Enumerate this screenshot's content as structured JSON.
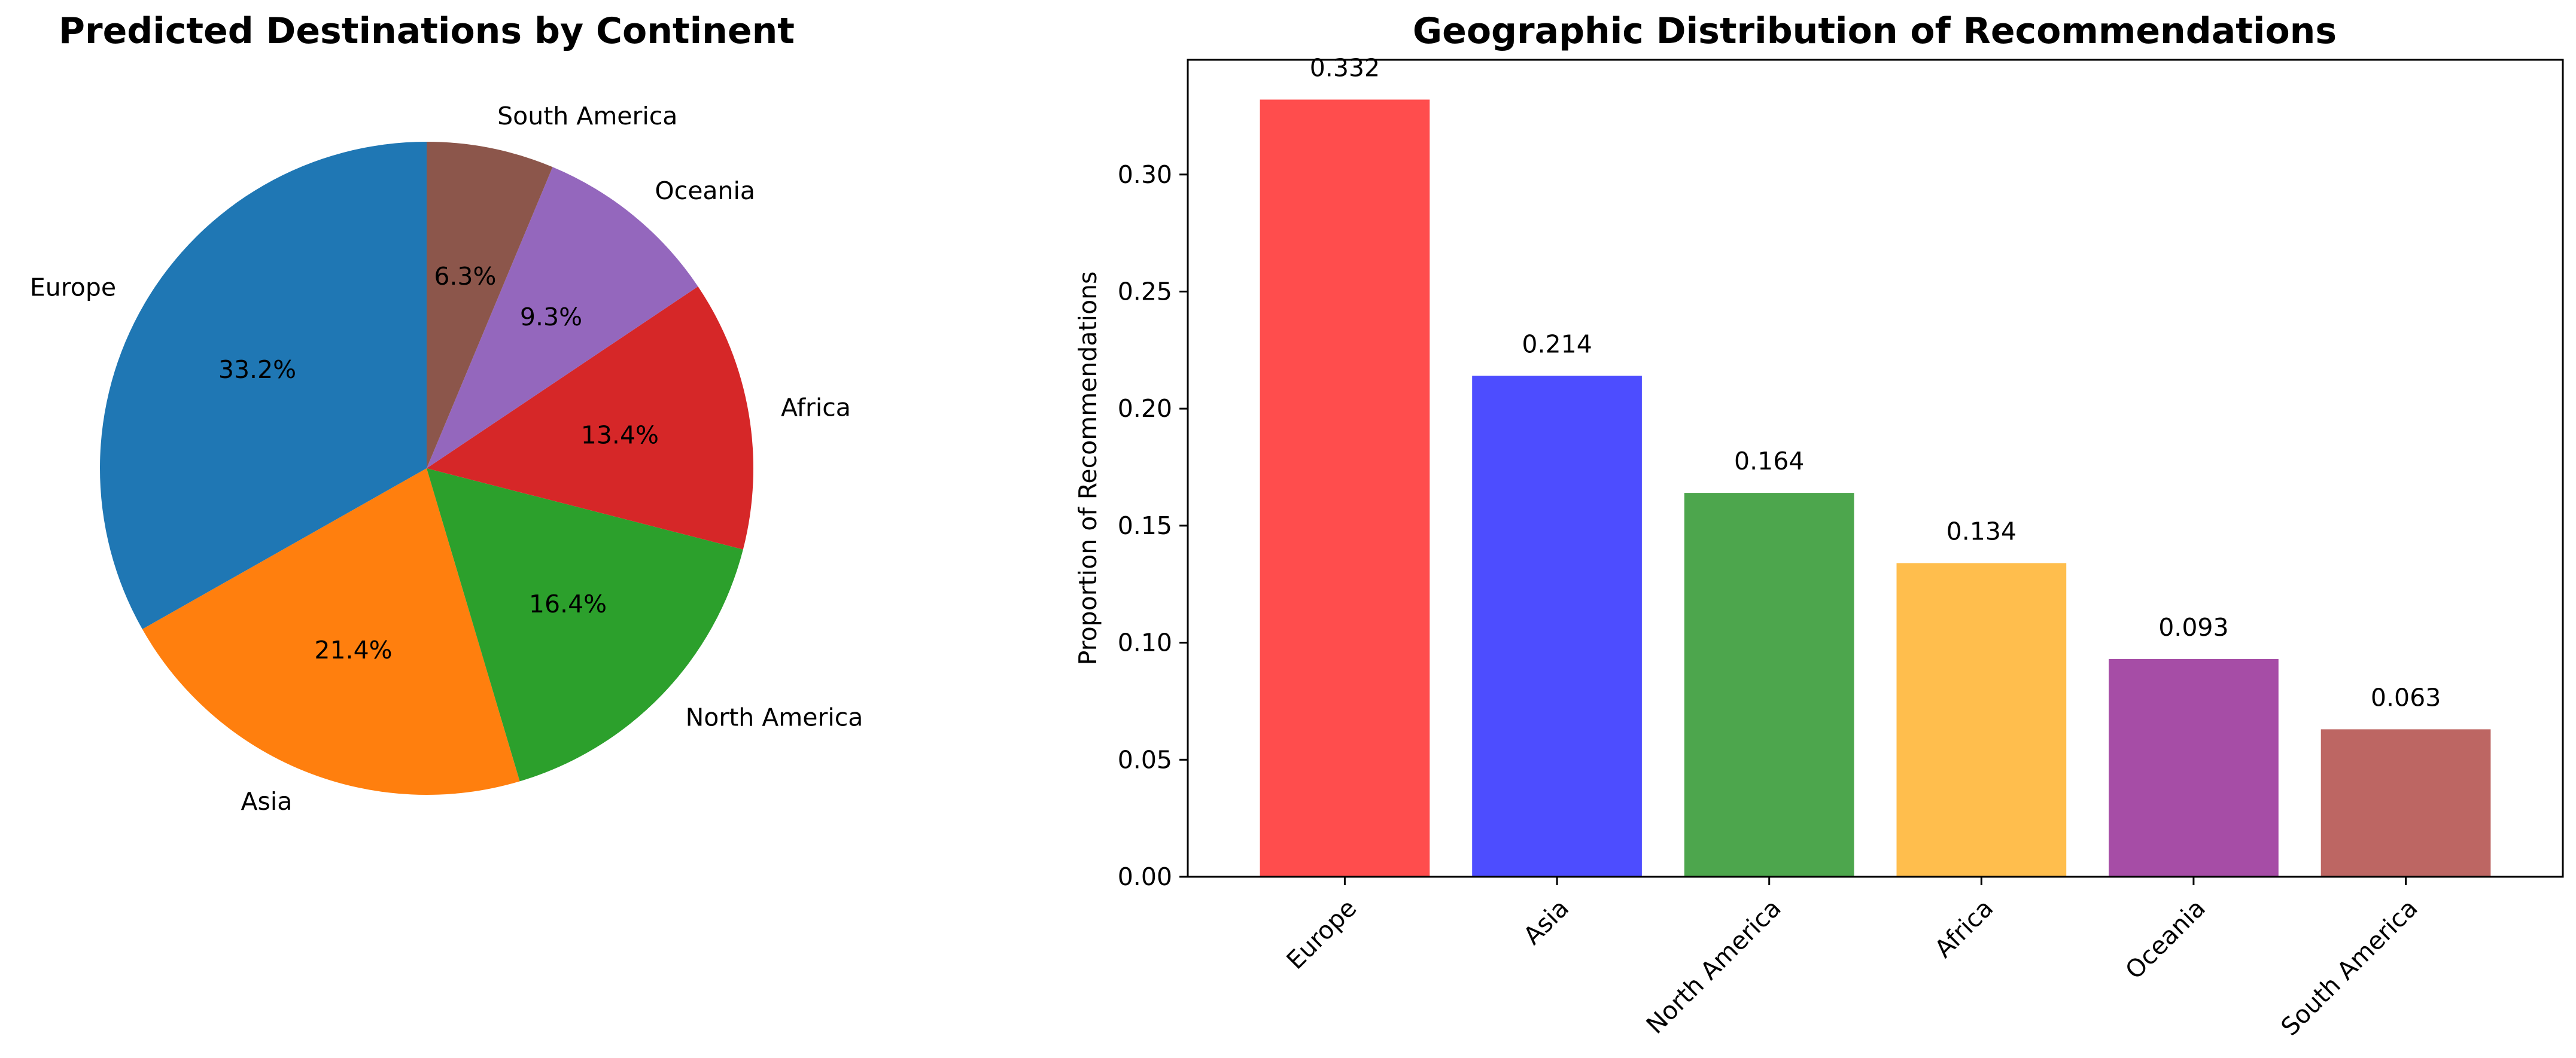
{
  "chart_data": [
    {
      "type": "pie",
      "title": "Predicted Destinations by Continent",
      "categories": [
        "Europe",
        "Asia",
        "North America",
        "Africa",
        "Oceania",
        "South America"
      ],
      "values": [
        33.2,
        21.4,
        16.4,
        13.4,
        9.3,
        6.3
      ],
      "value_labels": [
        "33.2%",
        "21.4%",
        "16.4%",
        "13.4%",
        "9.3%",
        "6.3%"
      ],
      "colors": [
        "#1f77b4",
        "#ff7f0e",
        "#2ca02c",
        "#d62728",
        "#9467bd",
        "#8c564b"
      ],
      "start_angle_deg": 90,
      "direction": "counterclockwise"
    },
    {
      "type": "bar",
      "title": "Geographic Distribution of Recommendations",
      "categories": [
        "Europe",
        "Asia",
        "North America",
        "Africa",
        "Oceania",
        "South America"
      ],
      "values": [
        0.332,
        0.214,
        0.164,
        0.134,
        0.093,
        0.063
      ],
      "value_labels": [
        "0.332",
        "0.214",
        "0.164",
        "0.134",
        "0.093",
        "0.063"
      ],
      "colors": [
        "#ff4d4d",
        "#4d4dff",
        "#4da64d",
        "#ffbe4d",
        "#a64da6",
        "#bd6663"
      ],
      "xlabel": "",
      "ylabel": "Proportion of Recommendations",
      "ylim": [
        0,
        0.349
      ],
      "yticks": [
        0.0,
        0.05,
        0.1,
        0.15,
        0.2,
        0.25,
        0.3
      ],
      "ytick_labels": [
        "0.00",
        "0.05",
        "0.10",
        "0.15",
        "0.20",
        "0.25",
        "0.30"
      ],
      "xtick_rotation_deg": 45,
      "grid": false
    }
  ]
}
